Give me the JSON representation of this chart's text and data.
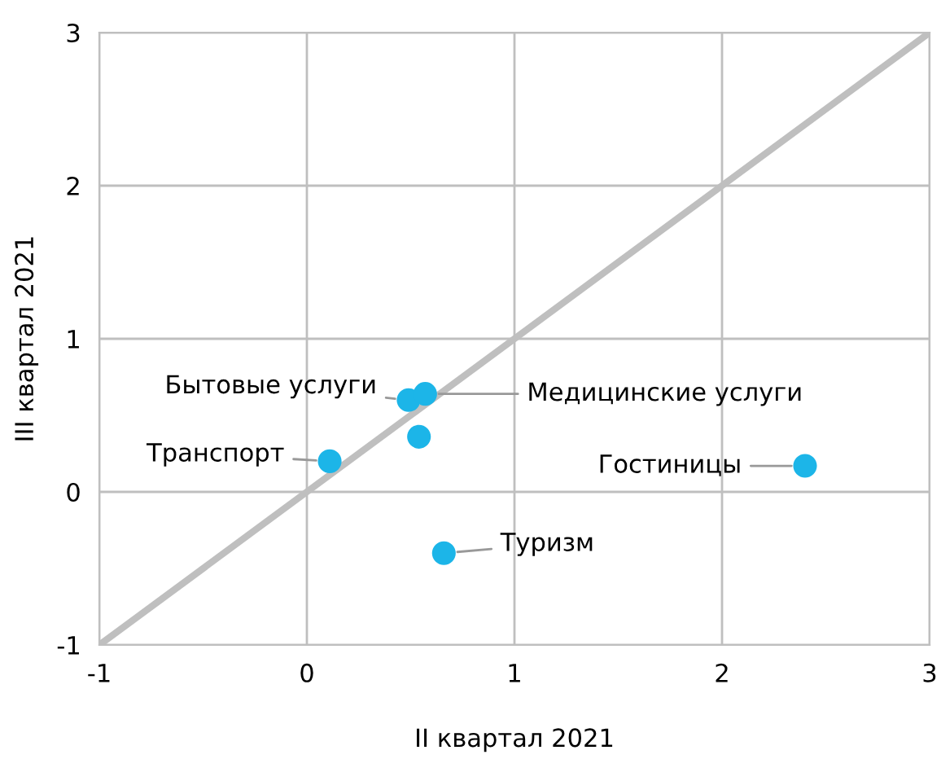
{
  "chart_data": {
    "type": "scatter",
    "xlabel": "II квартал 2021",
    "ylabel": "III квартал 2021",
    "series": [
      {
        "marker": "circle",
        "color": "#1cb5e8",
        "x": [
          0.11,
          0.49,
          0.57,
          0.54,
          0.66,
          2.4
        ],
        "values": [
          0.2,
          0.6,
          0.64,
          0.36,
          -0.4,
          0.17
        ]
      },
      {
        "type": "line",
        "marker": "none",
        "color": "#bfbfbf",
        "x": [
          -1,
          3
        ],
        "values": [
          -1,
          3
        ]
      }
    ],
    "annotations": [
      {
        "text": "Бытовые услуги",
        "x": 0.49,
        "y": 0.6
      },
      {
        "text": "Медицинские услуги",
        "x": 0.57,
        "y": 0.64
      },
      {
        "text": "Транспорт",
        "x": 0.11,
        "y": 0.2
      },
      {
        "text": "Туризм",
        "x": 0.66,
        "y": -0.4
      },
      {
        "text": "Гостиницы",
        "x": 2.4,
        "y": 0.17
      }
    ],
    "xlim": [
      -1,
      3
    ],
    "ylim": [
      -1,
      3
    ],
    "xticks": [
      -1,
      0,
      1,
      2,
      3
    ],
    "yticks": [
      -1,
      0,
      1,
      2,
      3
    ],
    "grid": true
  }
}
